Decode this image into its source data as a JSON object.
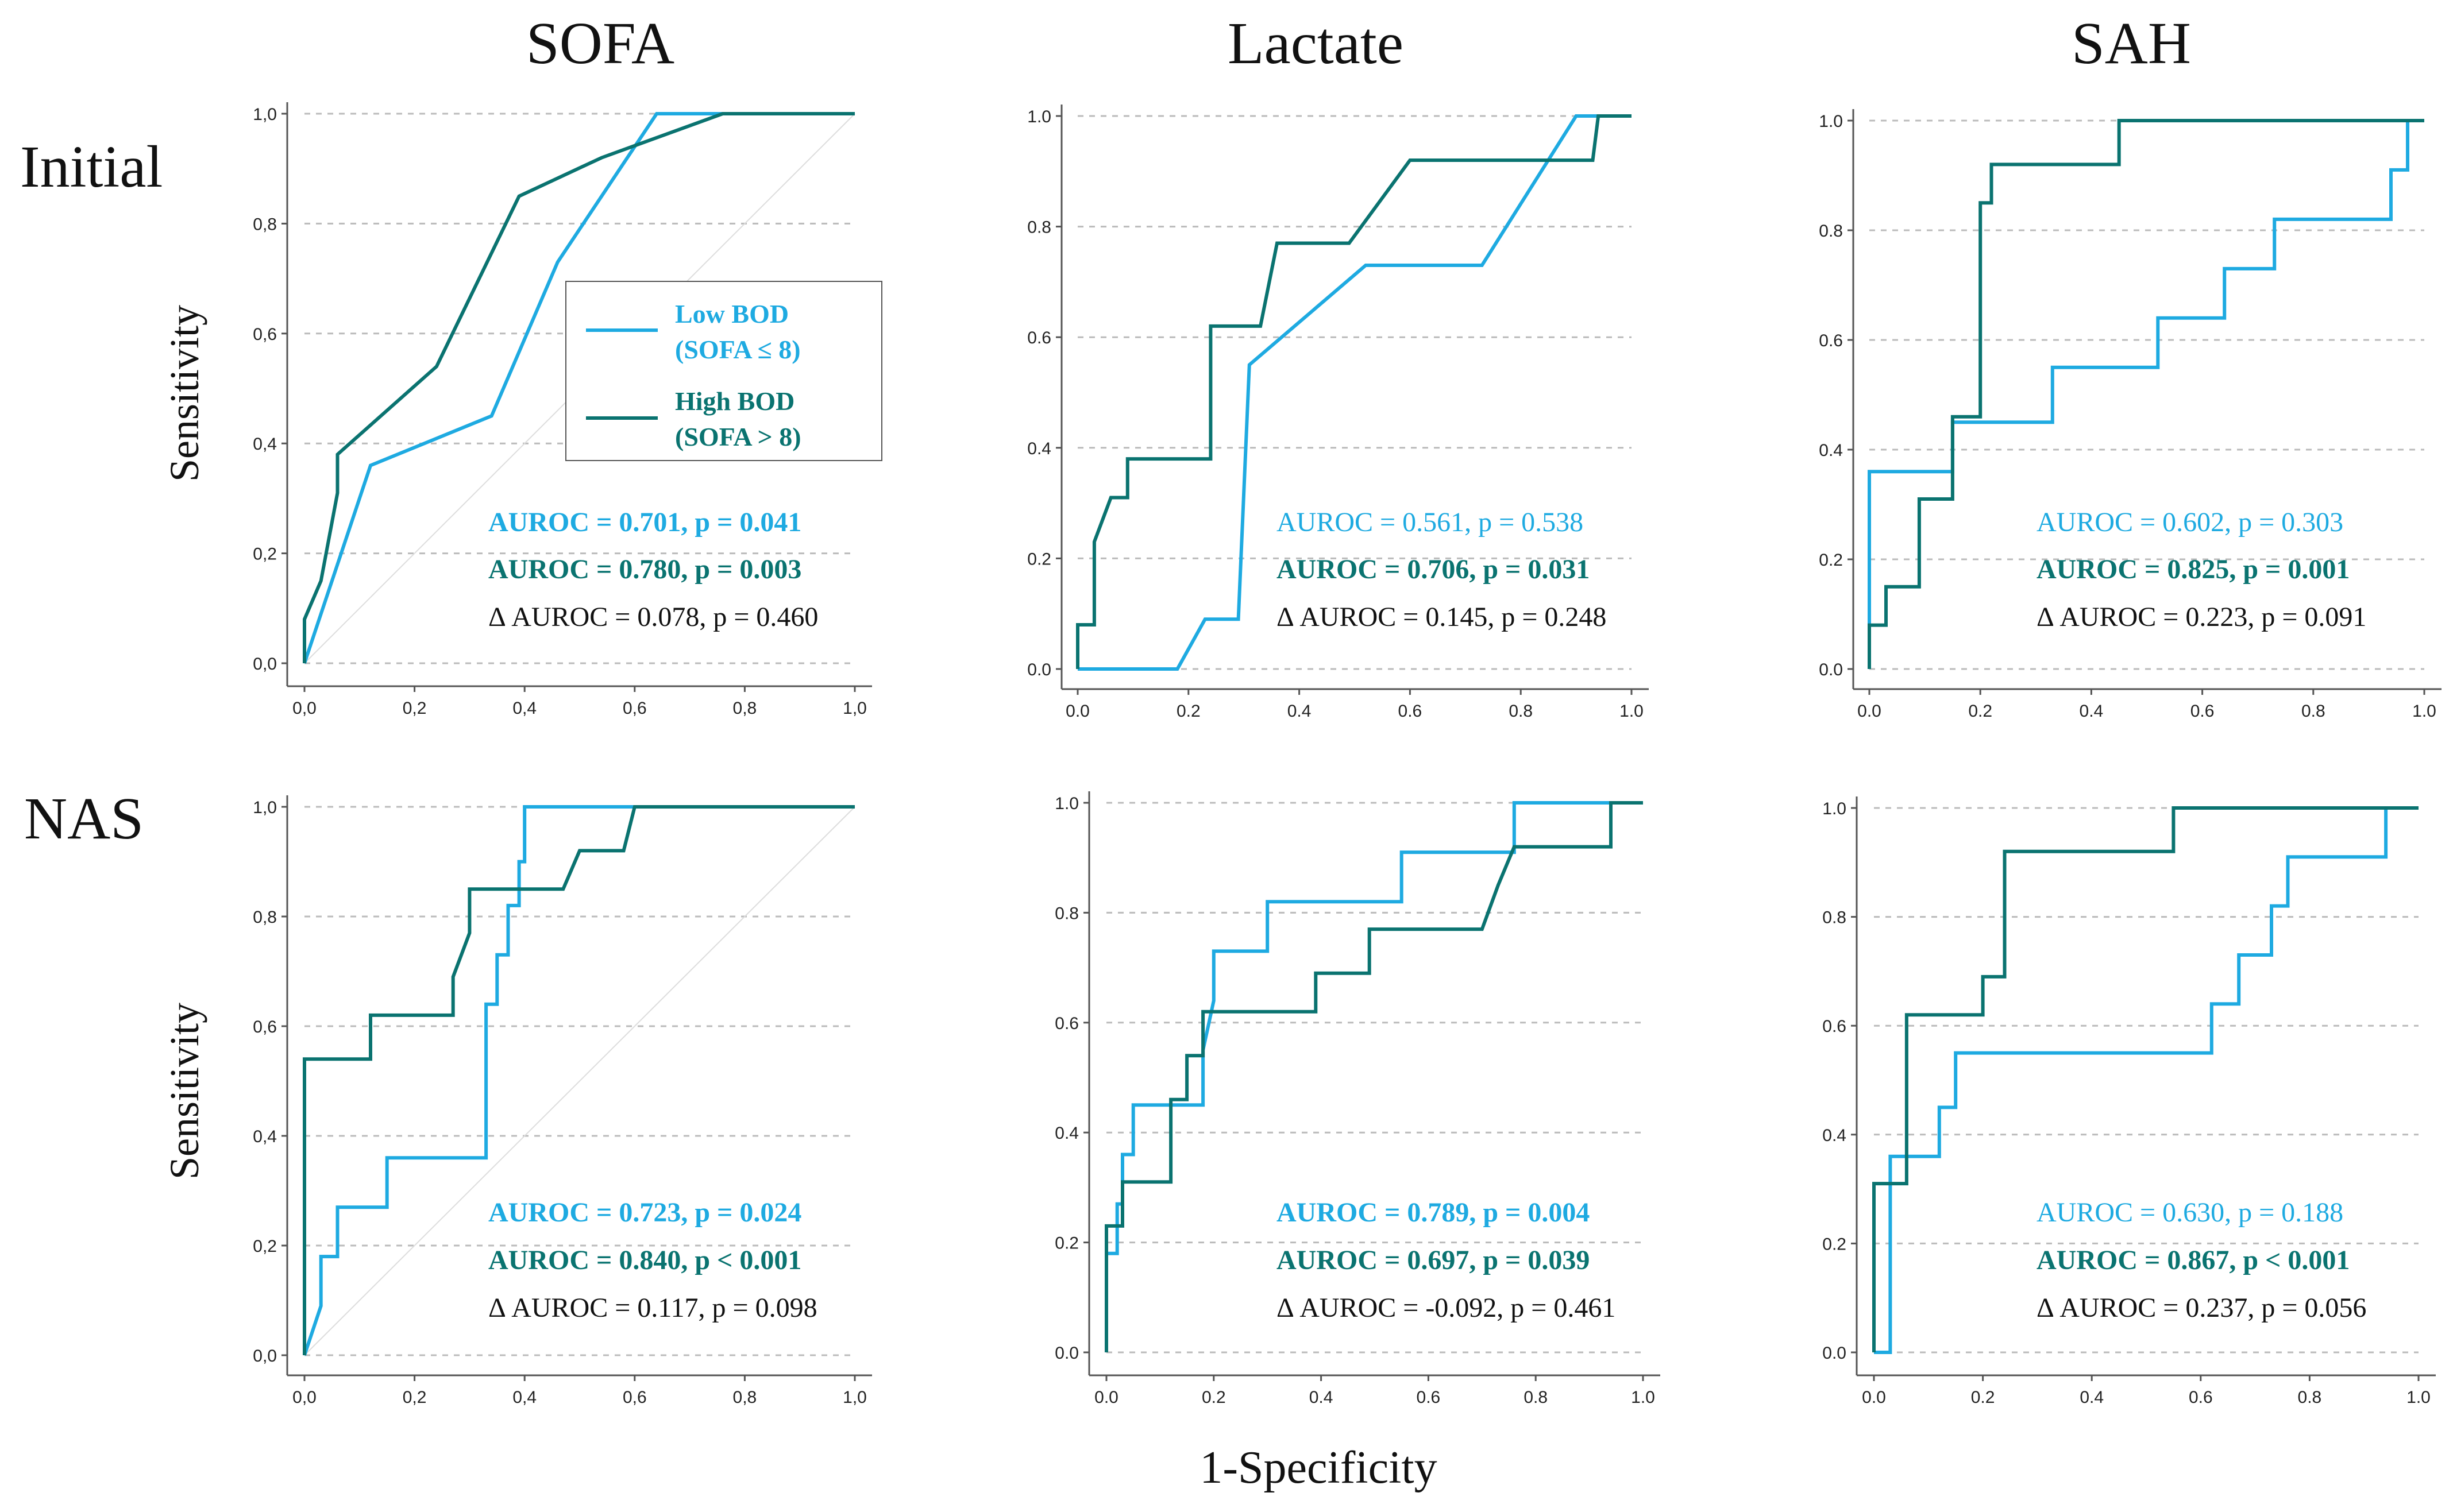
{
  "figure": {
    "column_titles": [
      "SOFA",
      "Lactate",
      "SAH"
    ],
    "row_titles": [
      "Initial",
      "NAS"
    ],
    "ylabel": "Sensitivity",
    "xlabel": "1-Specificity",
    "legend": [
      {
        "line1": "Low BOD",
        "line2": "(SOFA ≤ 8)",
        "color": "#1eaae1"
      },
      {
        "line1": "High BOD",
        "line2": "(SOFA > 8)",
        "color": "#0a7370"
      }
    ]
  },
  "colors": {
    "low": "#1eaae1",
    "high": "#0a7370",
    "delta": "#111111",
    "grid": "#bbbbbb",
    "axis": "#555555"
  },
  "chart_data": [
    {
      "type": "line",
      "row": "Initial",
      "column": "SOFA",
      "x_tick_labels": [
        "0,0",
        "0,2",
        "0,4",
        "0,6",
        "0,8",
        "1,0"
      ],
      "y_tick_labels": [
        "0,0",
        "0,2",
        "0,4",
        "0,6",
        "0,8",
        "1,0"
      ],
      "xlim": [
        0,
        1
      ],
      "ylim": [
        0,
        1
      ],
      "grid": "y-dashed",
      "diagonal_reference": true,
      "series": [
        {
          "name": "Low BOD (SOFA ≤ 8)",
          "color": "#1eaae1",
          "x": [
            0.0,
            0.12,
            0.34,
            0.46,
            0.64,
            1.0
          ],
          "y": [
            0.0,
            0.36,
            0.45,
            0.73,
            1.0,
            1.0
          ]
        },
        {
          "name": "High BOD (SOFA > 8)",
          "color": "#0a7370",
          "x": [
            0.0,
            0.0,
            0.03,
            0.06,
            0.06,
            0.24,
            0.39,
            0.54,
            0.76,
            1.0
          ],
          "y": [
            0.0,
            0.08,
            0.15,
            0.31,
            0.38,
            0.54,
            0.85,
            0.92,
            1.0,
            1.0
          ]
        }
      ],
      "annotations": [
        {
          "text": "AUROC = 0.701, p = 0.041",
          "series": "low",
          "bold": true
        },
        {
          "text": "AUROC = 0.780, p = 0.003",
          "series": "high",
          "bold": true
        },
        {
          "text": "Δ AUROC = 0.078, p = 0.460",
          "series": "delta",
          "bold": false
        }
      ]
    },
    {
      "type": "line",
      "row": "Initial",
      "column": "Lactate",
      "x_tick_labels": [
        "0.0",
        "0.2",
        "0.4",
        "0.6",
        "0.8",
        "1.0"
      ],
      "y_tick_labels": [
        "0.0",
        "0.2",
        "0.4",
        "0.6",
        "0.8",
        "1.0"
      ],
      "xlim": [
        0,
        1
      ],
      "ylim": [
        0,
        1
      ],
      "grid": "y-dashed",
      "diagonal_reference": false,
      "series": [
        {
          "name": "Low BOD (SOFA ≤ 8)",
          "color": "#1eaae1",
          "x": [
            0.0,
            0.18,
            0.23,
            0.29,
            0.31,
            0.52,
            0.73,
            0.9,
            0.93,
            0.93,
            1.0
          ],
          "y": [
            0.0,
            0.0,
            0.09,
            0.09,
            0.55,
            0.73,
            0.73,
            1.0,
            1.0,
            1.0,
            1.0
          ]
        },
        {
          "name": "High BOD (SOFA > 8)",
          "color": "#0a7370",
          "x": [
            0.0,
            0.0,
            0.03,
            0.03,
            0.06,
            0.09,
            0.09,
            0.12,
            0.15,
            0.24,
            0.24,
            0.33,
            0.36,
            0.49,
            0.6,
            0.93,
            0.94,
            1.0
          ],
          "y": [
            0.0,
            0.08,
            0.08,
            0.23,
            0.31,
            0.31,
            0.38,
            0.38,
            0.38,
            0.38,
            0.62,
            0.62,
            0.77,
            0.77,
            0.92,
            0.92,
            1.0,
            1.0
          ]
        }
      ],
      "annotations": [
        {
          "text": "AUROC = 0.561, p = 0.538",
          "series": "low",
          "bold": false
        },
        {
          "text": "AUROC = 0.706, p = 0.031",
          "series": "high",
          "bold": true
        },
        {
          "text": "Δ AUROC = 0.145, p = 0.248",
          "series": "delta",
          "bold": false
        }
      ]
    },
    {
      "type": "line",
      "row": "Initial",
      "column": "SAH",
      "x_tick_labels": [
        "0.0",
        "0.2",
        "0.4",
        "0.6",
        "0.8",
        "1.0"
      ],
      "y_tick_labels": [
        "0.0",
        "0.2",
        "0.4",
        "0.6",
        "0.8",
        "1.0"
      ],
      "xlim": [
        0,
        1
      ],
      "ylim": [
        0,
        1
      ],
      "grid": "y-dashed",
      "diagonal_reference": false,
      "series": [
        {
          "name": "Low BOD (SOFA ≤ 8)",
          "color": "#1eaae1",
          "x": [
            0.0,
            0.0,
            0.15,
            0.15,
            0.33,
            0.33,
            0.52,
            0.52,
            0.64,
            0.64,
            0.73,
            0.73,
            0.94,
            0.94,
            0.97,
            0.97,
            1.0
          ],
          "y": [
            0.0,
            0.36,
            0.36,
            0.45,
            0.45,
            0.55,
            0.55,
            0.64,
            0.64,
            0.73,
            0.73,
            0.82,
            0.82,
            0.91,
            0.91,
            1.0,
            1.0
          ]
        },
        {
          "name": "High BOD (SOFA > 8)",
          "color": "#0a7370",
          "x": [
            0.0,
            0.0,
            0.03,
            0.03,
            0.09,
            0.09,
            0.15,
            0.15,
            0.2,
            0.2,
            0.22,
            0.22,
            0.45,
            0.45,
            1.0
          ],
          "y": [
            0.0,
            0.08,
            0.08,
            0.15,
            0.15,
            0.31,
            0.31,
            0.46,
            0.46,
            0.85,
            0.85,
            0.92,
            0.92,
            1.0,
            1.0
          ]
        }
      ],
      "annotations": [
        {
          "text": "AUROC = 0.602, p = 0.303",
          "series": "low",
          "bold": false
        },
        {
          "text": "AUROC = 0.825, p = 0.001",
          "series": "high",
          "bold": true
        },
        {
          "text": "Δ AUROC = 0.223, p = 0.091",
          "series": "delta",
          "bold": false
        }
      ]
    },
    {
      "type": "line",
      "row": "NAS",
      "column": "SOFA",
      "x_tick_labels": [
        "0,0",
        "0,2",
        "0,4",
        "0,6",
        "0,8",
        "1,0"
      ],
      "y_tick_labels": [
        "0,0",
        "0,2",
        "0,4",
        "0,6",
        "0,8",
        "1,0"
      ],
      "xlim": [
        0,
        1
      ],
      "ylim": [
        0,
        1
      ],
      "grid": "y-dashed",
      "diagonal_reference": true,
      "series": [
        {
          "name": "Low BOD (SOFA ≤ 8)",
          "color": "#1eaae1",
          "x": [
            0.0,
            0.03,
            0.03,
            0.06,
            0.06,
            0.15,
            0.15,
            0.32,
            0.33,
            0.33,
            0.35,
            0.35,
            0.37,
            0.37,
            0.39,
            0.39,
            0.4,
            0.4,
            1.0
          ],
          "y": [
            0.0,
            0.09,
            0.18,
            0.18,
            0.27,
            0.27,
            0.36,
            0.36,
            0.36,
            0.64,
            0.64,
            0.73,
            0.73,
            0.82,
            0.82,
            0.9,
            0.9,
            1.0,
            1.0
          ]
        },
        {
          "name": "High BOD (SOFA > 8)",
          "color": "#0a7370",
          "x": [
            0.0,
            0.0,
            0.12,
            0.12,
            0.27,
            0.27,
            0.3,
            0.3,
            0.47,
            0.5,
            0.55,
            0.58,
            0.6,
            1.0
          ],
          "y": [
            0.0,
            0.54,
            0.54,
            0.62,
            0.62,
            0.69,
            0.77,
            0.85,
            0.85,
            0.92,
            0.92,
            0.92,
            1.0,
            1.0
          ]
        }
      ],
      "annotations": [
        {
          "text": "AUROC = 0.723, p = 0.024",
          "series": "low",
          "bold": true
        },
        {
          "text": "AUROC = 0.840, p < 0.001",
          "series": "high",
          "bold": true
        },
        {
          "text": "Δ AUROC = 0.117, p = 0.098",
          "series": "delta",
          "bold": false
        }
      ]
    },
    {
      "type": "line",
      "row": "NAS",
      "column": "Lactate",
      "x_tick_labels": [
        "0.0",
        "0.2",
        "0.4",
        "0.6",
        "0.8",
        "1.0"
      ],
      "y_tick_labels": [
        "0.0",
        "0.2",
        "0.4",
        "0.6",
        "0.8",
        "1.0"
      ],
      "xlim": [
        0,
        1
      ],
      "ylim": [
        0,
        1
      ],
      "grid": "y-dashed",
      "diagonal_reference": false,
      "series": [
        {
          "name": "Low BOD (SOFA ≤ 8)",
          "color": "#1eaae1",
          "x": [
            0.0,
            0.0,
            0.02,
            0.02,
            0.03,
            0.03,
            0.05,
            0.05,
            0.18,
            0.18,
            0.2,
            0.2,
            0.3,
            0.3,
            0.55,
            0.55,
            0.76,
            0.76,
            1.0
          ],
          "y": [
            0.0,
            0.18,
            0.18,
            0.27,
            0.27,
            0.36,
            0.36,
            0.45,
            0.45,
            0.55,
            0.64,
            0.73,
            0.73,
            0.82,
            0.82,
            0.91,
            0.91,
            1.0,
            1.0
          ]
        },
        {
          "name": "High BOD (SOFA > 8)",
          "color": "#0a7370",
          "x": [
            0.0,
            0.0,
            0.03,
            0.03,
            0.12,
            0.12,
            0.15,
            0.15,
            0.18,
            0.18,
            0.21,
            0.21,
            0.39,
            0.39,
            0.49,
            0.49,
            0.7,
            0.73,
            0.76,
            0.94,
            0.94,
            1.0
          ],
          "y": [
            0.0,
            0.23,
            0.23,
            0.31,
            0.31,
            0.46,
            0.46,
            0.54,
            0.54,
            0.62,
            0.62,
            0.62,
            0.62,
            0.69,
            0.69,
            0.77,
            0.77,
            0.85,
            0.92,
            0.92,
            1.0,
            1.0
          ]
        }
      ],
      "annotations": [
        {
          "text": "AUROC = 0.789, p = 0.004",
          "series": "low",
          "bold": true
        },
        {
          "text": "AUROC = 0.697, p = 0.039",
          "series": "high",
          "bold": true
        },
        {
          "text": "Δ AUROC = -0.092, p = 0.461",
          "series": "delta",
          "bold": false
        }
      ]
    },
    {
      "type": "line",
      "row": "NAS",
      "column": "SAH",
      "x_tick_labels": [
        "0.0",
        "0.2",
        "0.4",
        "0.6",
        "0.8",
        "1.0"
      ],
      "y_tick_labels": [
        "0.0",
        "0.2",
        "0.4",
        "0.6",
        "0.8",
        "1.0"
      ],
      "xlim": [
        0,
        1
      ],
      "ylim": [
        0,
        1
      ],
      "grid": "y-dashed",
      "diagonal_reference": false,
      "series": [
        {
          "name": "Low BOD (SOFA ≤ 8)",
          "color": "#1eaae1",
          "x": [
            0.0,
            0.03,
            0.03,
            0.12,
            0.12,
            0.15,
            0.15,
            0.62,
            0.62,
            0.67,
            0.67,
            0.7,
            0.7,
            0.73,
            0.73,
            0.76,
            0.76,
            0.94,
            0.94,
            1.0
          ],
          "y": [
            0.0,
            0.0,
            0.36,
            0.36,
            0.45,
            0.45,
            0.55,
            0.55,
            0.64,
            0.64,
            0.73,
            0.73,
            0.73,
            0.73,
            0.82,
            0.82,
            0.91,
            0.91,
            1.0,
            1.0
          ]
        },
        {
          "name": "High BOD (SOFA > 8)",
          "color": "#0a7370",
          "x": [
            0.0,
            0.0,
            0.06,
            0.06,
            0.2,
            0.2,
            0.24,
            0.24,
            0.55,
            0.55,
            1.0
          ],
          "y": [
            0.0,
            0.31,
            0.31,
            0.62,
            0.62,
            0.69,
            0.69,
            0.92,
            0.92,
            1.0,
            1.0
          ]
        }
      ],
      "annotations": [
        {
          "text": "AUROC = 0.630, p = 0.188",
          "series": "low",
          "bold": false
        },
        {
          "text": "AUROC = 0.867, p < 0.001",
          "series": "high",
          "bold": true
        },
        {
          "text": "Δ AUROC = 0.237,  p = 0.056",
          "series": "delta",
          "bold": false
        }
      ]
    }
  ]
}
